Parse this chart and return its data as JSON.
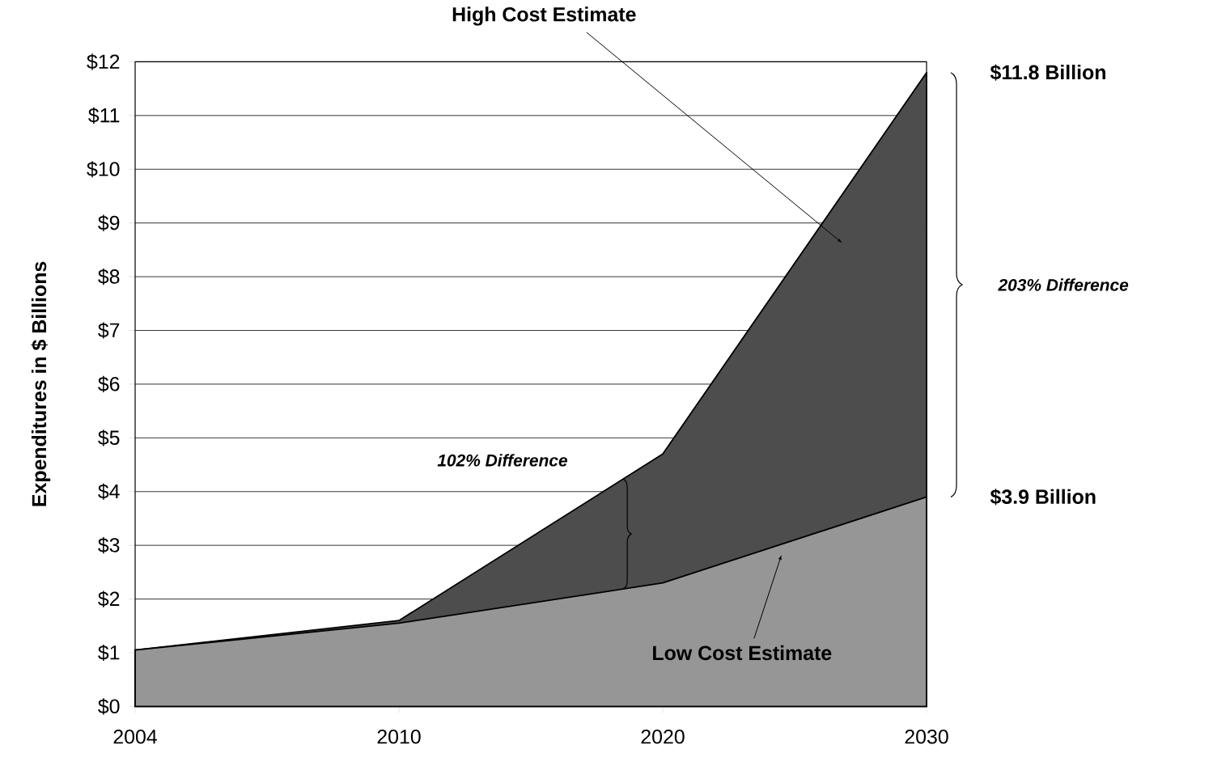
{
  "chart_data": {
    "type": "area",
    "ylabel": "Expenditures in $ Billions",
    "categories": [
      "2004",
      "2010",
      "2020",
      "2030"
    ],
    "series": [
      {
        "name": "High Cost Estimate",
        "color": "#4d4d4d",
        "values": [
          1.05,
          1.6,
          4.7,
          11.8
        ]
      },
      {
        "name": "Low Cost Estimate",
        "color": "#969696",
        "values": [
          1.05,
          1.55,
          2.3,
          3.9
        ]
      }
    ],
    "ylim": [
      0,
      12
    ],
    "yticks": [
      {
        "value": 0,
        "label": "$0"
      },
      {
        "value": 1,
        "label": "$1"
      },
      {
        "value": 2,
        "label": "$2"
      },
      {
        "value": 3,
        "label": "$3"
      },
      {
        "value": 4,
        "label": "$4"
      },
      {
        "value": 5,
        "label": "$5"
      },
      {
        "value": 6,
        "label": "$6"
      },
      {
        "value": 7,
        "label": "$7"
      },
      {
        "value": 8,
        "label": "$8"
      },
      {
        "value": 9,
        "label": "$9"
      },
      {
        "value": 10,
        "label": "$10"
      },
      {
        "value": 11,
        "label": "$11"
      },
      {
        "value": 12,
        "label": "$12"
      }
    ],
    "grid": "y",
    "legend": false,
    "annotations": [
      "$11.8 Billion",
      "$3.9 Billion",
      "203% Difference",
      "102% Difference"
    ]
  }
}
